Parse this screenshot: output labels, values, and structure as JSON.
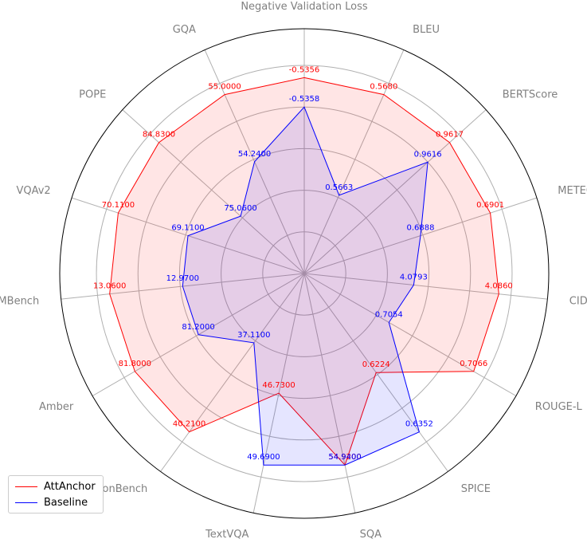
{
  "chart_data": {
    "type": "radar",
    "axes": [
      "Negative Validation Loss",
      "BLEU",
      "BERTScore",
      "METEOR",
      "CIDEr",
      "ROUGE-L",
      "SPICE",
      "SQA",
      "TextVQA",
      "HallusionBench",
      "Amber",
      "MMBench",
      "VQAv2",
      "POPE",
      "GQA"
    ],
    "series": [
      {
        "name": "AttAnchor",
        "color": "#ff0000",
        "fill": "rgba(255,0,0,0.1)",
        "labels": [
          "-0.5356",
          "0.5680",
          "0.9617",
          "0.6901",
          "4.0860",
          "0.7066",
          "0.6224",
          "54.9200",
          "46.7300",
          "40.2100",
          "81.8000",
          "13.0600",
          "70.1100",
          "84.8300",
          "55.0000"
        ],
        "values": [
          -0.5356,
          0.568,
          0.9617,
          0.6901,
          4.086,
          0.7066,
          0.6224,
          54.92,
          46.73,
          40.21,
          81.8,
          13.06,
          70.11,
          84.83,
          55.0
        ],
        "radius": [
          0.8,
          0.8,
          0.8,
          0.8,
          0.8,
          0.8,
          0.5,
          0.8,
          0.5,
          0.8,
          0.8,
          0.8,
          0.8,
          0.8,
          0.8
        ]
      },
      {
        "name": "Baseline",
        "color": "#0000ff",
        "fill": "rgba(0,0,255,0.1)",
        "labels": [
          "-0.5358",
          "0.5663",
          "0.9616",
          "0.6888",
          "4.0793",
          "0.7054",
          "0.6352",
          "54.9400",
          "49.6900",
          "37.1100",
          "81.2000",
          "12.9700",
          "69.1100",
          "75.0600",
          "54.2400"
        ],
        "values": [
          -0.5358,
          0.5663,
          0.9616,
          0.6888,
          4.0793,
          0.7054,
          0.6352,
          54.94,
          49.69,
          37.11,
          81.2,
          12.97,
          69.11,
          75.06,
          54.24
        ],
        "radius": [
          0.68,
          0.35,
          0.68,
          0.5,
          0.45,
          0.4,
          0.8,
          0.8,
          0.8,
          0.35,
          0.5,
          0.5,
          0.5,
          0.35,
          0.5
        ]
      }
    ],
    "rlim": [
      0,
      1
    ],
    "grid": true,
    "legend": "bottom-left"
  }
}
